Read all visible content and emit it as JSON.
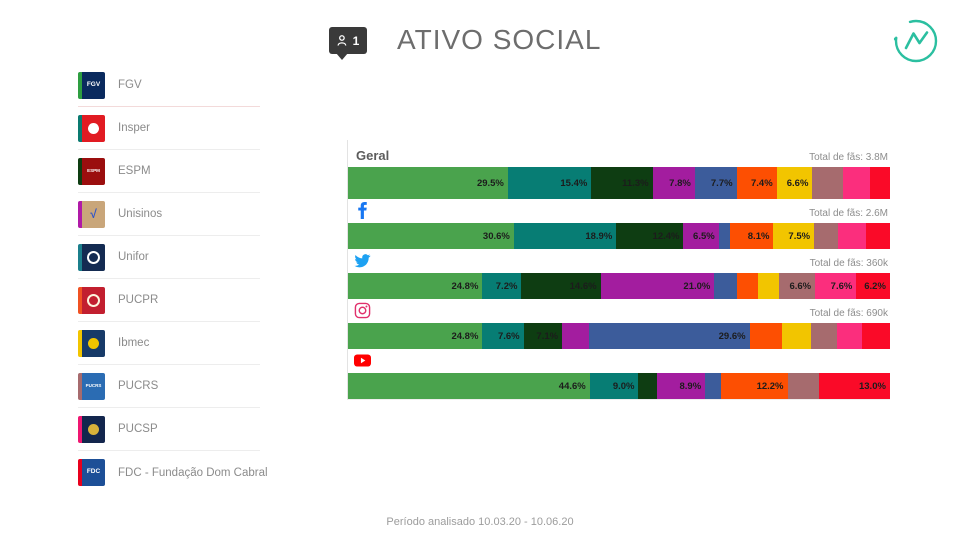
{
  "header": {
    "badge_count": "1",
    "title": "ATIVO SOCIAL"
  },
  "brand": {
    "color": "#2bbfa0"
  },
  "sidebar": {
    "items": [
      {
        "label": "FGV",
        "logo_shape": "text",
        "logo_text": "FGV",
        "stripe": "#2e9e41",
        "bg": "#0a2a5e",
        "fg": "#ffffff"
      },
      {
        "label": "Insper",
        "logo_shape": "dot",
        "logo_text": "",
        "stripe": "#0a7a70",
        "bg": "#e11b22",
        "fg": "#ffffff"
      },
      {
        "label": "ESPM",
        "logo_shape": "text",
        "logo_text": "ESPM",
        "stripe": "#0e3d12",
        "bg": "#9b0e0e",
        "fg": "#ffffff"
      },
      {
        "label": "Unisinos",
        "logo_shape": "text",
        "logo_text": "√",
        "stripe": "#b01aa7",
        "bg": "#c9a67a",
        "fg": "#2f55c9"
      },
      {
        "label": "Unifor",
        "logo_shape": "ring",
        "logo_text": "",
        "stripe": "#1b7f8c",
        "bg": "#142b52",
        "fg": "#ffffff"
      },
      {
        "label": "PUCPR",
        "logo_shape": "ring",
        "logo_text": "",
        "stripe": "#f05223",
        "bg": "#c21f2f",
        "fg": "#fdf3dc"
      },
      {
        "label": "Ibmec",
        "logo_shape": "dot",
        "logo_text": "",
        "stripe": "#f2c500",
        "bg": "#173a68",
        "fg": "#f2c500"
      },
      {
        "label": "PUCRS",
        "logo_shape": "text",
        "logo_text": "PUCRS",
        "stripe": "#a66b6e",
        "bg": "#2b6cb3",
        "fg": "#ffffff"
      },
      {
        "label": "PUCSP",
        "logo_shape": "dot",
        "logo_text": "",
        "stripe": "#ef1771",
        "bg": "#13264d",
        "fg": "#d9b23a"
      },
      {
        "label": "FDC - Fundação Dom Cabral",
        "logo_shape": "text",
        "logo_text": "FDC",
        "stripe": "#e8001d",
        "bg": "#1d4f97",
        "fg": "#ffffff"
      }
    ]
  },
  "chart_data": {
    "type": "bar",
    "orientation": "horizontal",
    "stacked": true,
    "unit": "%",
    "grid": false,
    "legend_position": "left-sidebar",
    "title": "ATIVO SOCIAL",
    "institutions": [
      "FGV",
      "Insper",
      "ESPM",
      "Unisinos",
      "Unifor",
      "PUCPR",
      "Ibmec",
      "PUCRS",
      "PUCSP",
      "FDC - Fundação Dom Cabral"
    ],
    "colors": [
      "#4aa34d",
      "#077d74",
      "#0e3d12",
      "#a31d9f",
      "#3c5c9b",
      "#fd4f02",
      "#f2c500",
      "#a66b6e",
      "#fb2e7d",
      "#fa0a28"
    ],
    "rows": [
      {
        "key": "geral",
        "label": "Geral",
        "icon": "geral",
        "total_label": "Total de fãs: 3.8M",
        "values": [
          29.5,
          15.4,
          11.3,
          7.8,
          7.7,
          7.4,
          6.6,
          5.6,
          5.0,
          3.7
        ],
        "segment_labels": [
          "29.5%",
          "15.4%",
          "11.3%",
          "7.8%",
          "7.7%",
          "7.4%",
          "6.6%",
          "",
          "",
          ""
        ]
      },
      {
        "key": "facebook",
        "label": "Facebook",
        "icon": "facebook",
        "total_label": "Total de fãs: 2.6M",
        "values": [
          30.6,
          18.9,
          12.4,
          6.5,
          2.0,
          8.1,
          7.5,
          4.5,
          5.0,
          4.5
        ],
        "segment_labels": [
          "30.6%",
          "18.9%",
          "12.4%",
          "6.5%",
          "",
          "8.1%",
          "7.5%",
          "",
          "",
          ""
        ]
      },
      {
        "key": "twitter",
        "label": "Twitter",
        "icon": "twitter",
        "total_label": "Total de fãs: 360k",
        "values": [
          24.8,
          7.2,
          14.6,
          21.0,
          4.2,
          3.9,
          3.9,
          6.6,
          7.6,
          6.2
        ],
        "segment_labels": [
          "24.8%",
          "7.2%",
          "14.6%",
          "21.0%",
          "",
          "",
          "",
          "6.6%",
          "7.6%",
          "6.2%"
        ]
      },
      {
        "key": "instagram",
        "label": "Instagram",
        "icon": "instagram",
        "total_label": "Total de fãs: 690k",
        "values": [
          24.8,
          7.6,
          7.1,
          5.0,
          29.6,
          5.9,
          5.5,
          4.7,
          4.7,
          5.1
        ],
        "segment_labels": [
          "24.8%",
          "7.6%",
          "7.1%",
          "",
          "29.6%",
          "",
          "",
          "",
          "",
          ""
        ]
      },
      {
        "key": "youtube",
        "label": "YouTube",
        "icon": "youtube",
        "total_label": "",
        "values": [
          44.6,
          9.0,
          3.4,
          8.9,
          3.0,
          12.2,
          0,
          5.9,
          0,
          13.0
        ],
        "segment_labels": [
          "44.6%",
          "9.0%",
          "",
          "8.9%",
          "",
          "12.2%",
          "",
          "",
          "",
          "13.0%"
        ]
      }
    ]
  },
  "footer": {
    "period": "Período analisado 10.03.20 - 10.06.20"
  }
}
